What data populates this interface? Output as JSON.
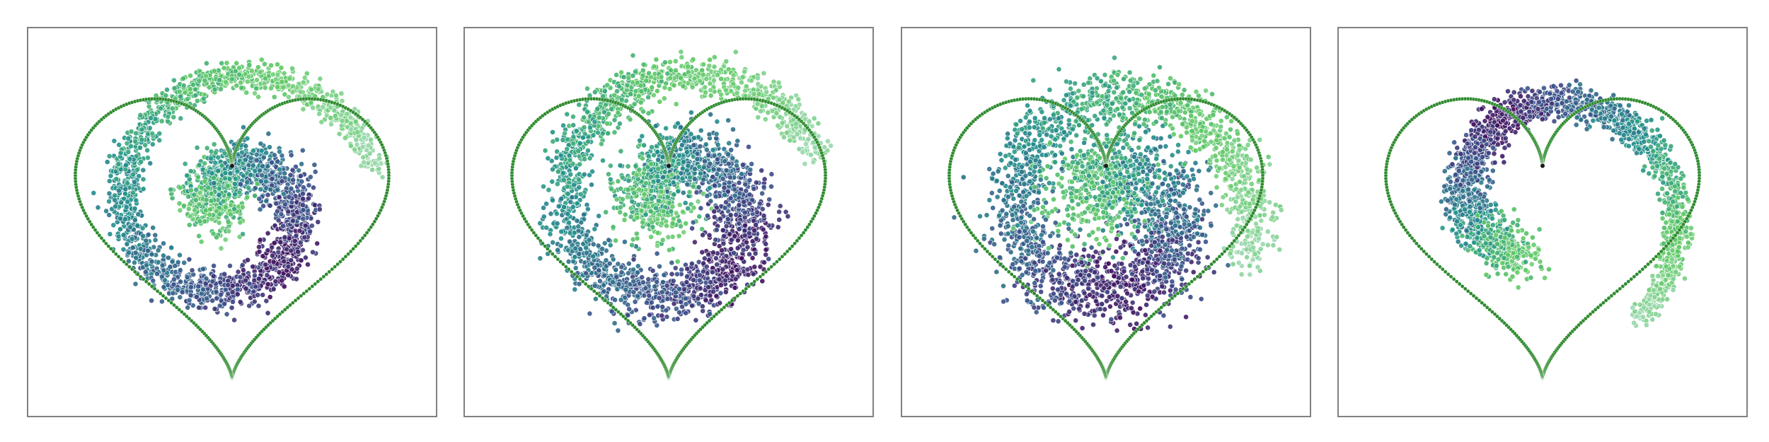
{
  "chart_data": [
    {
      "type": "scatter",
      "title": "",
      "xlabel": "",
      "ylabel": "",
      "grid": false,
      "legend": "none",
      "xlim": [
        -1.3,
        1.3
      ],
      "ylim": [
        -1.3,
        1.2
      ],
      "colormap": [
        "#440154",
        "#3b528b",
        "#21918c",
        "#5ec962",
        "#9fd9b4"
      ],
      "boundary_color": "#2e8b2e",
      "series": [
        {
          "name": "heart-boundary",
          "shape": "heart",
          "points": 400
        },
        {
          "name": "spiral-samples",
          "points": 2600,
          "spiral_start_angle_deg": 195,
          "spiral_arc_deg": 540,
          "radius_start": 0.08,
          "radius_end": 1.0,
          "center": [
            0.0,
            0.05
          ],
          "spread": 0.07
        }
      ]
    },
    {
      "type": "scatter",
      "title": "",
      "xlabel": "",
      "ylabel": "",
      "grid": false,
      "legend": "none",
      "xlim": [
        -1.3,
        1.3
      ],
      "ylim": [
        -1.3,
        1.2
      ],
      "colormap": [
        "#440154",
        "#3b528b",
        "#21918c",
        "#5ec962",
        "#9fd9b4"
      ],
      "boundary_color": "#2e8b2e",
      "series": [
        {
          "name": "heart-boundary",
          "shape": "heart",
          "points": 400
        },
        {
          "name": "spiral-samples",
          "points": 2800,
          "spiral_start_angle_deg": 200,
          "spiral_arc_deg": 540,
          "radius_start": 0.12,
          "radius_end": 1.0,
          "center": [
            0.05,
            0.05
          ],
          "spread": 0.09
        }
      ]
    },
    {
      "type": "scatter",
      "title": "",
      "xlabel": "",
      "ylabel": "",
      "grid": false,
      "legend": "none",
      "xlim": [
        -1.3,
        1.3
      ],
      "ylim": [
        -1.3,
        1.2
      ],
      "colormap": [
        "#440154",
        "#3b528b",
        "#21918c",
        "#5ec962",
        "#9fd9b4"
      ],
      "boundary_color": "#2e8b2e",
      "series": [
        {
          "name": "heart-boundary",
          "shape": "heart",
          "points": 400
        },
        {
          "name": "spiral-samples",
          "points": 2800,
          "spiral_start_angle_deg": 160,
          "spiral_arc_deg": 540,
          "radius_start": 0.15,
          "radius_end": 0.95,
          "center": [
            0.05,
            0.0
          ],
          "spread": 0.12
        }
      ]
    },
    {
      "type": "scatter",
      "title": "",
      "xlabel": "",
      "ylabel": "",
      "grid": false,
      "legend": "none",
      "xlim": [
        -1.3,
        1.3
      ],
      "ylim": [
        -1.3,
        1.2
      ],
      "colormap": [
        "#440154",
        "#3b528b",
        "#21918c",
        "#5ec962",
        "#9fd9b4"
      ],
      "boundary_color": "#2e8b2e",
      "series": [
        {
          "name": "heart-boundary",
          "shape": "heart",
          "points": 400
        },
        {
          "name": "spiral-samples",
          "points": 2000,
          "spiral_start_angle_deg": 250,
          "spiral_arc_deg": 300,
          "radius_start": 0.35,
          "radius_end": 1.0,
          "center": [
            0.0,
            0.05
          ],
          "spread": 0.06
        }
      ]
    }
  ]
}
